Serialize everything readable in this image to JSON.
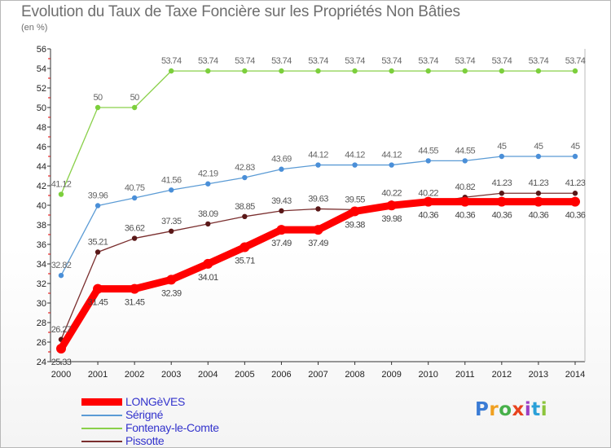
{
  "title": "Evolution du Taux de Taxe Foncière sur les Propriétés Non Bâties",
  "unit_label": "(en %)",
  "chart_data": {
    "type": "line",
    "x": [
      2000,
      2001,
      2002,
      2003,
      2004,
      2005,
      2006,
      2007,
      2008,
      2009,
      2010,
      2011,
      2012,
      2013,
      2014
    ],
    "ylim": [
      24,
      56
    ],
    "y_ticks": [
      24,
      26,
      28,
      30,
      32,
      34,
      36,
      38,
      40,
      42,
      44,
      46,
      48,
      50,
      52,
      54,
      56
    ],
    "grid": false,
    "legend_position": "bottom-left",
    "series": [
      {
        "name": "LONGèVES",
        "color": "#ff0000",
        "values": [
          25.33,
          31.45,
          31.45,
          32.39,
          34.01,
          35.71,
          37.49,
          37.49,
          39.38,
          39.98,
          40.36,
          40.36,
          40.36,
          40.36,
          40.36
        ],
        "labels": [
          "25.33",
          "31.45",
          "31.45",
          "32.39",
          "34.01",
          "35.71",
          "37.49",
          "37.49",
          "39.38",
          "39.98",
          "40.36",
          "40.36",
          "40.36",
          "40.36",
          "40.36"
        ]
      },
      {
        "name": "Sérigné",
        "color": "#5b9bd5",
        "values": [
          32.82,
          39.96,
          40.75,
          41.56,
          42.19,
          42.83,
          43.69,
          44.12,
          44.12,
          44.12,
          44.55,
          44.55,
          45,
          45,
          45
        ],
        "labels": [
          "32.82",
          "39.96",
          "40.75",
          "41.56",
          "42.19",
          "42.83",
          "43.69",
          "44.12",
          "44.12",
          "44.12",
          "44.55",
          "44.55",
          "45",
          "45",
          "45"
        ]
      },
      {
        "name": "Fontenay-le-Comte",
        "color": "#8ad04a",
        "values": [
          41.12,
          50,
          50,
          53.74,
          53.74,
          53.74,
          53.74,
          53.74,
          53.74,
          53.74,
          53.74,
          53.74,
          53.74,
          53.74,
          53.74
        ],
        "labels": [
          "41.12",
          "50",
          "50",
          "53.74",
          "53.74",
          "53.74",
          "53.74",
          "53.74",
          "53.74",
          "53.74",
          "53.74",
          "53.74",
          "53.74",
          "53.74",
          "53.74"
        ]
      },
      {
        "name": "Pissotte",
        "color": "#7a2e2e",
        "values": [
          26.27,
          35.21,
          36.62,
          37.35,
          38.09,
          38.85,
          39.43,
          39.63,
          39.55,
          40.22,
          40.22,
          40.82,
          41.23,
          41.23,
          41.23
        ],
        "labels": [
          "26.27",
          "35.21",
          "36.62",
          "37.35",
          "38.09",
          "38.85",
          "39.43",
          "39.63",
          "39.55",
          "40.22",
          "40.22",
          "40.82",
          "41.23",
          "41.23",
          "41.23"
        ]
      }
    ]
  },
  "brand": {
    "letters": [
      "P",
      "r",
      "o",
      "x",
      "i",
      "t",
      "i"
    ],
    "colors": [
      "#3a7bd5",
      "#f0a020",
      "#47b04a",
      "#e8431e",
      "#9c3fc4",
      "#2aa0d8",
      "#8cc43c"
    ]
  }
}
